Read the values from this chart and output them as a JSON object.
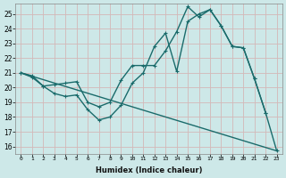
{
  "xlabel": "Humidex (Indice chaleur)",
  "bg_color": "#cde8e8",
  "grid_color": "#c0d8d8",
  "line_color": "#1a6b6b",
  "xlim": [
    -0.5,
    23.5
  ],
  "ylim": [
    15.5,
    25.7
  ],
  "xticks": [
    0,
    1,
    2,
    3,
    4,
    5,
    6,
    7,
    8,
    9,
    10,
    11,
    12,
    13,
    14,
    15,
    16,
    17,
    18,
    19,
    20,
    21,
    22,
    23
  ],
  "yticks": [
    16,
    17,
    18,
    19,
    20,
    21,
    22,
    23,
    24,
    25
  ],
  "series1_x": [
    0,
    1,
    2,
    3,
    4,
    5,
    6,
    7,
    8,
    9,
    10,
    11,
    12,
    13,
    14,
    15,
    16,
    17,
    18,
    19,
    20,
    21,
    22
  ],
  "series1_y": [
    21.0,
    20.8,
    20.1,
    20.2,
    20.3,
    20.4,
    19.0,
    18.7,
    19.0,
    20.5,
    21.5,
    21.5,
    21.5,
    22.5,
    23.8,
    25.5,
    24.8,
    25.3,
    24.2,
    22.8,
    22.7,
    20.6,
    18.3
  ],
  "series2_x": [
    0,
    1,
    2,
    3,
    4,
    5,
    6,
    7,
    8,
    9,
    10,
    11,
    12,
    13,
    14,
    15,
    16,
    17,
    18,
    19,
    20,
    21,
    22,
    23
  ],
  "series2_y": [
    21.0,
    20.7,
    20.1,
    19.6,
    19.4,
    19.5,
    18.5,
    17.8,
    18.0,
    18.8,
    20.3,
    21.0,
    22.8,
    23.7,
    21.1,
    24.5,
    25.0,
    25.3,
    24.2,
    22.8,
    22.7,
    20.6,
    18.3,
    15.7
  ],
  "series3_x": [
    0,
    23
  ],
  "series3_y": [
    21.0,
    15.7
  ],
  "marker_size": 2.5,
  "linewidth": 1.0
}
